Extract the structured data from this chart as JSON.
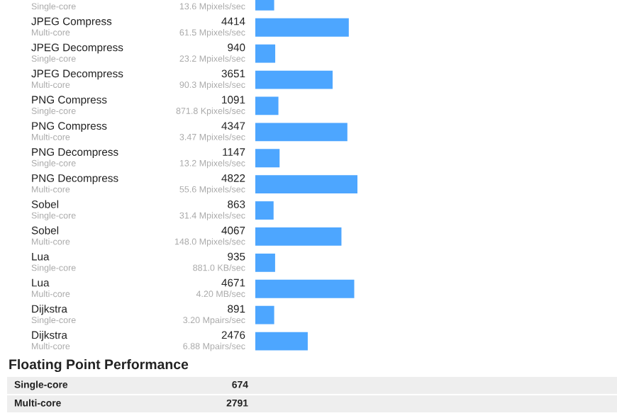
{
  "chart_data": [
    {
      "type": "bar",
      "orientation": "horizontal",
      "categories": [
        "Single-core",
        "JPEG Compress\nMulti-core",
        "JPEG Decompress\nSingle-core",
        "JPEG Decompress\nMulti-core",
        "PNG Compress\nSingle-core",
        "PNG Compress\nMulti-core",
        "PNG Decompress\nSingle-core",
        "PNG Decompress\nMulti-core",
        "Sobel\nSingle-core",
        "Sobel\nMulti-core",
        "Lua\nSingle-core",
        "Lua\nMulti-core",
        "Dijkstra\nSingle-core",
        "Dijkstra\nMulti-core"
      ],
      "values": [
        890,
        4414,
        940,
        3651,
        1091,
        4347,
        1147,
        4822,
        863,
        4067,
        935,
        4671,
        891,
        2476
      ],
      "value_labels": [
        null,
        "4414",
        "940",
        "3651",
        "1091",
        "4347",
        "1147",
        "4822",
        "863",
        "4067",
        "935",
        "4671",
        "891",
        "2476"
      ],
      "annotations": [
        "13.6 Mpixels/sec",
        "61.5 Mpixels/sec",
        "23.2 Mpixels/sec",
        "90.3 Mpixels/sec",
        "871.8 Kpixels/sec",
        "3.47 Mpixels/sec",
        "13.2 Mpixels/sec",
        "55.6 Mpixels/sec",
        "31.4 Mpixels/sec",
        "148.0 Mpixels/sec",
        "881.0 KB/sec",
        "4.20 MB/sec",
        "3.20 Mpairs/sec",
        "6.88 Mpairs/sec"
      ],
      "color": "#4da6ff"
    },
    {
      "type": "other",
      "title": "Floating Point Performance",
      "annotations": [
        "Single-core",
        "674",
        "Multi-core",
        "2791"
      ]
    }
  ]
}
